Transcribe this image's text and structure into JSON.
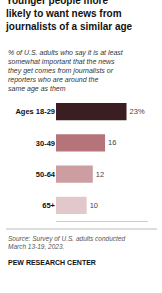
{
  "chart_data": {
    "type": "bar",
    "orientation": "horizontal",
    "title": "Younger people more\nlikely to want news from\njournalists of a similar age",
    "subtitle": "% of U.S. adults who say it is at least\nsomewhat important that the news\nthey get comes from journalists or\nreporters who are around the\nsame age as them",
    "categories": [
      "Ages 18-29",
      "30-49",
      "50-64",
      "65+"
    ],
    "values": [
      23,
      16,
      12,
      10
    ],
    "value_labels": [
      "23%",
      "16",
      "12",
      "10"
    ],
    "colors": [
      "#3b1e22",
      "#b5737a",
      "#cc9da1",
      "#e2c8cb"
    ],
    "xlim": [
      0,
      30
    ],
    "data_labels": true,
    "tick_labels": "y",
    "grid": false,
    "annotations": [
      "Source: Survey of U.S. adults conducted\nMarch 13-19, 2023.",
      "PEW RESEARCH CENTER"
    ]
  }
}
